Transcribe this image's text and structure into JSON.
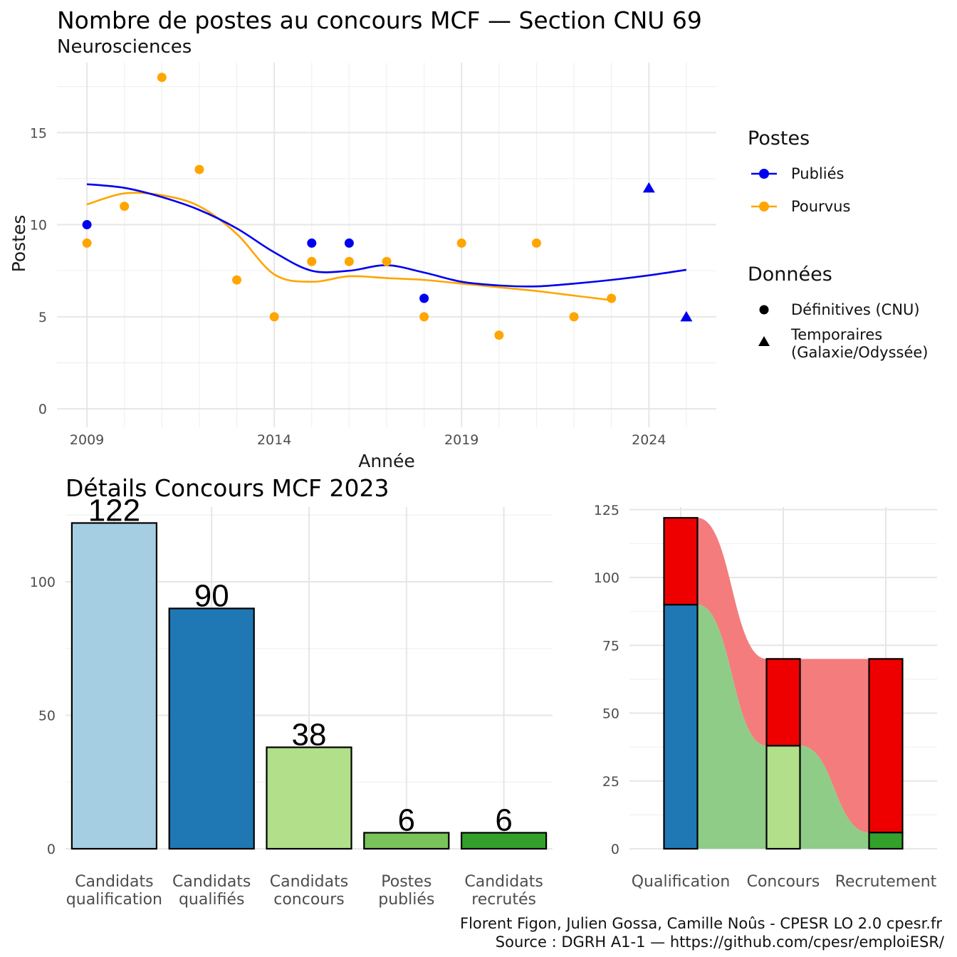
{
  "chart_data": [
    {
      "type": "scatter",
      "title": "Nombre de postes au concours MCF —  Section CNU 69",
      "subtitle": "Neurosciences",
      "xlabel": "Année",
      "ylabel": "Postes",
      "xlim": [
        2008.2,
        2025.8
      ],
      "ylim": [
        -1,
        18.8
      ],
      "x_ticks": [
        "2009",
        "2014",
        "2019",
        "2024"
      ],
      "y_ticks": [
        "0",
        "5",
        "10",
        "15"
      ],
      "grid": true,
      "legend_position": "right",
      "legend_postes_title": "Postes",
      "legend_donnees_title": "Données",
      "series": [
        {
          "name": "Publiés",
          "color": "#0000ee",
          "points": [
            {
              "x": 2009,
              "y": 10,
              "shape": "circle"
            },
            {
              "x": 2015,
              "y": 9,
              "shape": "circle"
            },
            {
              "x": 2016,
              "y": 9,
              "shape": "circle"
            },
            {
              "x": 2018,
              "y": 6,
              "shape": "circle"
            },
            {
              "x": 2024,
              "y": 12,
              "shape": "triangle"
            },
            {
              "x": 2025,
              "y": 5,
              "shape": "triangle"
            }
          ],
          "smooth": [
            [
              2009,
              12.2
            ],
            [
              2010,
              12.0
            ],
            [
              2011,
              11.5
            ],
            [
              2012,
              10.8
            ],
            [
              2013,
              9.8
            ],
            [
              2014,
              8.5
            ],
            [
              2015,
              7.5
            ],
            [
              2016,
              7.5
            ],
            [
              2017,
              7.8
            ],
            [
              2018,
              7.4
            ],
            [
              2019,
              6.9
            ],
            [
              2020,
              6.7
            ],
            [
              2021,
              6.65
            ],
            [
              2022,
              6.8
            ],
            [
              2023,
              7.0
            ],
            [
              2024,
              7.25
            ],
            [
              2025,
              7.55
            ]
          ]
        },
        {
          "name": "Pourvus",
          "color": "#ffa500",
          "points": [
            {
              "x": 2009,
              "y": 9,
              "shape": "circle"
            },
            {
              "x": 2010,
              "y": 11,
              "shape": "circle"
            },
            {
              "x": 2011,
              "y": 18,
              "shape": "circle"
            },
            {
              "x": 2012,
              "y": 13,
              "shape": "circle"
            },
            {
              "x": 2013,
              "y": 7,
              "shape": "circle"
            },
            {
              "x": 2014,
              "y": 5,
              "shape": "circle"
            },
            {
              "x": 2015,
              "y": 8,
              "shape": "circle"
            },
            {
              "x": 2016,
              "y": 8,
              "shape": "circle"
            },
            {
              "x": 2017,
              "y": 8,
              "shape": "circle"
            },
            {
              "x": 2018,
              "y": 5,
              "shape": "circle"
            },
            {
              "x": 2019,
              "y": 9,
              "shape": "circle"
            },
            {
              "x": 2020,
              "y": 4,
              "shape": "circle"
            },
            {
              "x": 2021,
              "y": 9,
              "shape": "circle"
            },
            {
              "x": 2022,
              "y": 5,
              "shape": "circle"
            },
            {
              "x": 2023,
              "y": 6,
              "shape": "circle"
            }
          ],
          "smooth": [
            [
              2009,
              11.1
            ],
            [
              2010,
              11.7
            ],
            [
              2011,
              11.6
            ],
            [
              2012,
              11.0
            ],
            [
              2013,
              9.5
            ],
            [
              2014,
              7.3
            ],
            [
              2015,
              6.9
            ],
            [
              2016,
              7.2
            ],
            [
              2017,
              7.1
            ],
            [
              2018,
              7.0
            ],
            [
              2019,
              6.8
            ],
            [
              2020,
              6.6
            ],
            [
              2021,
              6.4
            ],
            [
              2022,
              6.15
            ],
            [
              2023,
              5.9
            ]
          ]
        }
      ],
      "shape_legend": [
        {
          "label": "Définitives (CNU)",
          "shape": "circle"
        },
        {
          "label_lines": [
            "Temporaires",
            "(Galaxie/Odyssée)"
          ],
          "shape": "triangle"
        }
      ]
    },
    {
      "type": "bar",
      "title": "Détails Concours MCF 2023",
      "categories": [
        [
          "Candidats",
          "qualification"
        ],
        [
          "Candidats",
          "qualifiés"
        ],
        [
          "Candidats",
          "concours"
        ],
        [
          "Postes",
          "publiés"
        ],
        [
          "Candidats",
          "recrutés"
        ]
      ],
      "values": [
        122,
        90,
        38,
        6,
        6
      ],
      "value_labels": [
        "122",
        "90",
        "38",
        "6",
        "6"
      ],
      "colors": [
        "#a6cee3",
        "#1f78b4",
        "#b2df8a",
        "#7ac25a",
        "#33a02c"
      ],
      "ylim": [
        0,
        128
      ],
      "y_ticks": [
        0,
        50,
        100
      ]
    },
    {
      "type": "bar",
      "subtype": "stacked-alluvial",
      "categories": [
        "Qualification",
        "Concours",
        "Recrutement"
      ],
      "ylim": [
        0,
        126
      ],
      "y_ticks": [
        0,
        25,
        50,
        75,
        100,
        125
      ],
      "stacks": [
        {
          "category": "Qualification",
          "segments": [
            {
              "value": 90,
              "color": "#1f78b4"
            },
            {
              "value": 32,
              "color": "#ee0000"
            }
          ]
        },
        {
          "category": "Concours",
          "segments": [
            {
              "value": 38,
              "color": "#b2df8a"
            },
            {
              "value": 32,
              "color": "#ee0000"
            }
          ]
        },
        {
          "category": "Recrutement",
          "segments": [
            {
              "value": 6,
              "color": "#33a02c"
            },
            {
              "value": 64,
              "color": "#ee0000"
            }
          ]
        }
      ],
      "flows": {
        "green_color": "#8fcc88",
        "red_color": "#f47c7c"
      }
    }
  ],
  "caption": {
    "line1": "Florent Figon, Julien Gossa, Camille Noûs - CPESR LO 2.0 cpesr.fr",
    "line2": "Source : DGRH A1-1 — https://github.com/cpesr/emploiESR/"
  }
}
